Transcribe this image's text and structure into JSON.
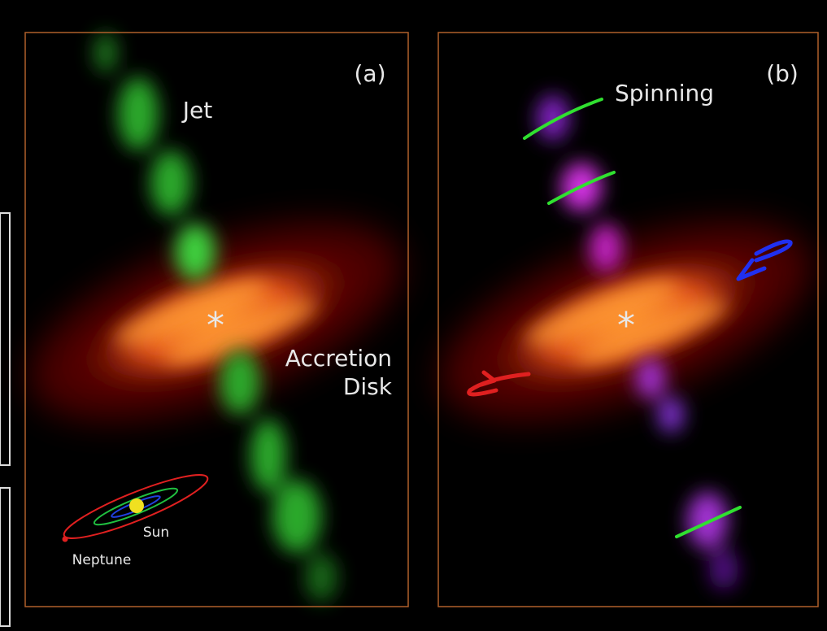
{
  "panels": [
    {
      "label": "(a)",
      "center_mark": "*",
      "annotations": {
        "jet": "Jet",
        "disk": [
          "Accretion",
          "Disk"
        ],
        "sun": "Sun",
        "neptune": "Neptune"
      }
    },
    {
      "label": "(b)",
      "center_mark": "*",
      "annotations": {
        "spinning": "Spinning"
      }
    }
  ]
}
